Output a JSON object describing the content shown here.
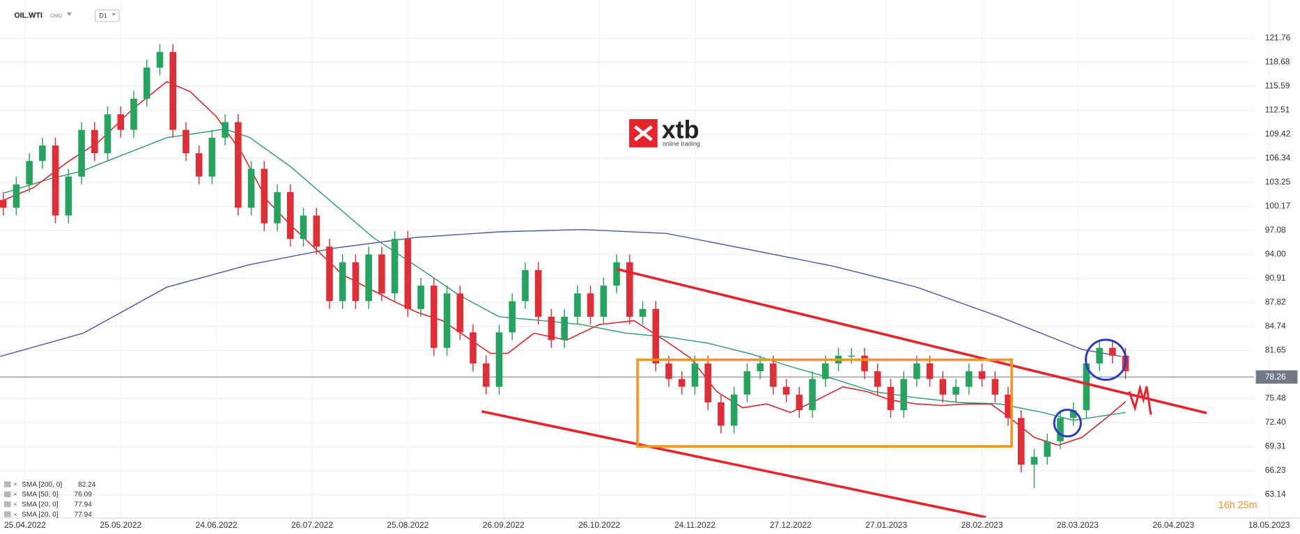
{
  "header": {
    "symbol": "OIL.WTI",
    "market": "CMD",
    "timeframe": "D1"
  },
  "logo": {
    "name": "xtb",
    "tagline": "online trading"
  },
  "countdown": "16h 25m",
  "chart_data": {
    "type": "candlestick",
    "xlim": [
      -5.75,
      293.1
    ],
    "ylim": [
      60.15,
      126.68
    ],
    "grid": true,
    "up_color": "#26a35f",
    "down_color": "#e02e37",
    "last_price": 78.26,
    "xticks": [
      {
        "value": 0,
        "label": "25.04.2022"
      },
      {
        "value": 22,
        "label": "25.05.2022"
      },
      {
        "value": 44,
        "label": "24.06.2022"
      },
      {
        "value": 66,
        "label": "26.07.2022"
      },
      {
        "value": 88,
        "label": "25.08.2022"
      },
      {
        "value": 110,
        "label": "26.09.2022"
      },
      {
        "value": 132,
        "label": "26.10.2022"
      },
      {
        "value": 154,
        "label": "24.11.2022"
      },
      {
        "value": 176,
        "label": "27.12.2022"
      },
      {
        "value": 198,
        "label": "27.01.2023"
      },
      {
        "value": 220,
        "label": "28.02.2023"
      },
      {
        "value": 242,
        "label": "28.03.2023"
      },
      {
        "value": 264,
        "label": "26.04.2023"
      },
      {
        "value": 286,
        "label": "18.05.2023"
      }
    ],
    "yticks": [
      63.14,
      66.23,
      69.31,
      {
        "value": 72.4,
        "label": "72.40"
      },
      75.48,
      81.65,
      84.74,
      87.82,
      90.91,
      {
        "value": 94,
        "label": "94.00"
      },
      97.08,
      100.17,
      103.25,
      106.34,
      109.42,
      112.51,
      115.59,
      118.68,
      121.76
    ],
    "x": [
      -5,
      -2,
      1,
      4,
      7,
      10,
      13,
      16,
      19,
      22,
      25,
      28,
      31,
      34,
      37,
      40,
      43,
      46,
      49,
      52,
      55,
      58,
      61,
      64,
      67,
      70,
      73,
      76,
      79,
      82,
      85,
      88,
      91,
      94,
      97,
      100,
      103,
      106,
      109,
      112,
      115,
      118,
      121,
      124,
      127,
      130,
      133,
      136,
      139,
      142,
      145,
      148,
      151,
      154,
      157,
      160,
      163,
      166,
      169,
      172,
      175,
      178,
      181,
      184,
      187,
      190,
      193,
      196,
      199,
      202,
      205,
      208,
      211,
      214,
      217,
      220,
      223,
      226,
      229,
      232,
      235,
      238,
      241,
      244,
      247,
      250,
      253
    ],
    "open": [
      101,
      100,
      103,
      106,
      108,
      99,
      104,
      110,
      107,
      112,
      110,
      114,
      118,
      120,
      110,
      107,
      104,
      109,
      111,
      100,
      105,
      98,
      102,
      96,
      99,
      95,
      88,
      93,
      88,
      94,
      89,
      96,
      87,
      90,
      82,
      89,
      84,
      80,
      77,
      84,
      88,
      92,
      86,
      83,
      86,
      89,
      86,
      90,
      93,
      86,
      87,
      80,
      78,
      77,
      80,
      75,
      72,
      76,
      79,
      80,
      77,
      76,
      74,
      78,
      80,
      81,
      81,
      79,
      77,
      74,
      78,
      80,
      78,
      76,
      77,
      79,
      78,
      76,
      73,
      67,
      68,
      70,
      73,
      74,
      80,
      82,
      81
    ],
    "high": [
      102,
      104,
      107,
      109,
      109,
      105,
      111,
      111,
      113,
      113,
      115,
      119,
      121,
      121,
      111,
      108,
      110,
      112,
      112,
      106,
      106,
      103,
      103,
      100,
      100,
      96,
      94,
      94,
      95,
      95,
      97,
      97,
      91,
      91,
      90,
      90,
      85,
      81,
      85,
      89,
      93,
      93,
      87,
      87,
      90,
      90,
      91,
      94,
      94,
      88,
      88,
      81,
      79,
      81,
      81,
      76,
      77,
      80,
      81,
      81,
      78,
      77,
      79,
      81,
      82,
      82,
      82,
      80,
      78,
      79,
      81,
      81,
      79,
      78,
      80,
      80,
      79,
      77,
      74,
      69,
      71,
      74,
      75,
      81,
      83,
      83,
      82
    ],
    "low": [
      99,
      99,
      102,
      105,
      98,
      98,
      103,
      106,
      106,
      109,
      109,
      113,
      117,
      109,
      106,
      103,
      103,
      108,
      99,
      99,
      97,
      97,
      95,
      95,
      94,
      87,
      87,
      87,
      87,
      88,
      88,
      86,
      86,
      81,
      81,
      83,
      79,
      76,
      76,
      83,
      87,
      85,
      82,
      82,
      85,
      85,
      85,
      89,
      85,
      85,
      79,
      77,
      76,
      76,
      74,
      71,
      71,
      75,
      78,
      76,
      75,
      73,
      73,
      77,
      79,
      80,
      78,
      76,
      73,
      73,
      77,
      77,
      75,
      75,
      76,
      77,
      75,
      72,
      66,
      64,
      67,
      69,
      72,
      73,
      79,
      80,
      78
    ],
    "close": [
      100,
      103,
      106,
      108,
      99,
      104,
      110,
      107,
      112,
      110,
      114,
      118,
      120,
      110,
      107,
      104,
      109,
      111,
      100,
      105,
      98,
      102,
      96,
      99,
      95,
      88,
      93,
      88,
      94,
      89,
      96,
      87,
      90,
      82,
      89,
      84,
      80,
      77,
      84,
      88,
      92,
      86,
      83,
      86,
      89,
      86,
      90,
      93,
      86,
      87,
      80,
      78,
      77,
      80,
      75,
      72,
      76,
      79,
      80,
      77,
      76,
      74,
      78,
      80,
      81,
      81,
      79,
      77,
      74,
      78,
      80,
      78,
      76,
      77,
      79,
      78,
      76,
      73,
      67,
      68,
      70,
      73,
      74,
      80,
      82,
      81,
      79
    ],
    "series": [
      {
        "name": "SMA [200, 0]",
        "last_value": 82.24,
        "color": "#4f58a8",
        "x": [
          -5.7,
          13.4,
          32.6,
          51.7,
          70.9,
          90,
          109,
          128,
          147.5,
          166.7,
          185.8,
          205,
          224,
          243,
          252
        ],
        "values": [
          80.9,
          83.9,
          89.8,
          92.7,
          94.8,
          96.2,
          96.9,
          97.2,
          96.7,
          94.6,
          92.5,
          89.8,
          86,
          81.8,
          80.9
        ]
      },
      {
        "name": "SMA [50, 0]",
        "last_value": 76.09,
        "color": "#2f9e70",
        "x": [
          -4.8,
          5.7,
          13,
          23,
          32.6,
          46,
          51.7,
          61,
          71,
          80,
          90,
          100,
          109,
          119,
          128,
          138,
          147.5,
          157,
          167,
          176,
          186,
          195,
          205,
          214.6,
          224,
          234,
          241,
          247,
          253
        ],
        "values": [
          101.9,
          103.7,
          104.7,
          106.9,
          109,
          110.1,
          109,
          105.3,
          100.5,
          96.2,
          92.5,
          88.7,
          86,
          85.5,
          85,
          83.9,
          83.4,
          82.6,
          81.2,
          79.6,
          78,
          76.4,
          75.6,
          75,
          74.8,
          73.7,
          72.7,
          73.2,
          73.7
        ]
      },
      {
        "name": "SMA [20, 0]",
        "last_value": 77.94,
        "color": "#e1262c",
        "x": [
          -4.8,
          2,
          9.6,
          17,
          25,
          32.6,
          38,
          44,
          50,
          55.6,
          61,
          67,
          73,
          78.5,
          84,
          90,
          96,
          101.5,
          107,
          111,
          117,
          124.5,
          132,
          140,
          147.5,
          153,
          159,
          165,
          170.5,
          176,
          182,
          188,
          193.5,
          199,
          205,
          210.7,
          216.5,
          222,
          226,
          232,
          237.5,
          243,
          249,
          253
        ],
        "values": [
          101,
          102.6,
          105.8,
          108.5,
          112.8,
          116.2,
          114.9,
          111.7,
          106.9,
          101,
          97.8,
          94.6,
          91.4,
          89.8,
          88.2,
          86.6,
          85.5,
          83.4,
          81.3,
          81.3,
          83.9,
          83,
          85,
          85.5,
          82.8,
          80.7,
          76.4,
          74.3,
          74.8,
          73.7,
          75.3,
          77,
          76.4,
          75.3,
          74.8,
          74.6,
          74.8,
          74.8,
          73.2,
          70.5,
          69.5,
          70.5,
          73.2,
          75.1
        ]
      },
      {
        "name": "SMA [20, 0]",
        "last_value": 77.94,
        "color": "#e1262c",
        "x": [
          -4.8,
          2,
          9.6,
          17,
          25,
          32.6,
          38,
          44,
          50,
          55.6,
          61,
          67,
          73,
          78.5,
          84,
          90,
          96,
          101.5,
          107,
          111,
          117,
          124.5,
          132,
          140,
          147.5,
          153,
          159,
          165,
          170.5,
          176,
          182,
          188,
          193.5,
          199,
          205,
          210.7,
          216.5,
          222,
          226,
          232,
          237.5,
          243,
          249,
          253
        ],
        "values": [
          101,
          102.6,
          105.8,
          108.5,
          112.8,
          116.2,
          114.9,
          111.7,
          106.9,
          101,
          97.8,
          94.6,
          91.4,
          89.8,
          88.2,
          86.6,
          85.5,
          83.4,
          81.3,
          81.3,
          83.9,
          83,
          85,
          85.5,
          82.8,
          80.7,
          76.4,
          74.3,
          74.8,
          73.7,
          75.3,
          77,
          76.4,
          75.3,
          74.8,
          74.6,
          74.8,
          74.8,
          73.2,
          70.5,
          69.5,
          70.5,
          73.2,
          75.1
        ]
      }
    ]
  }
}
